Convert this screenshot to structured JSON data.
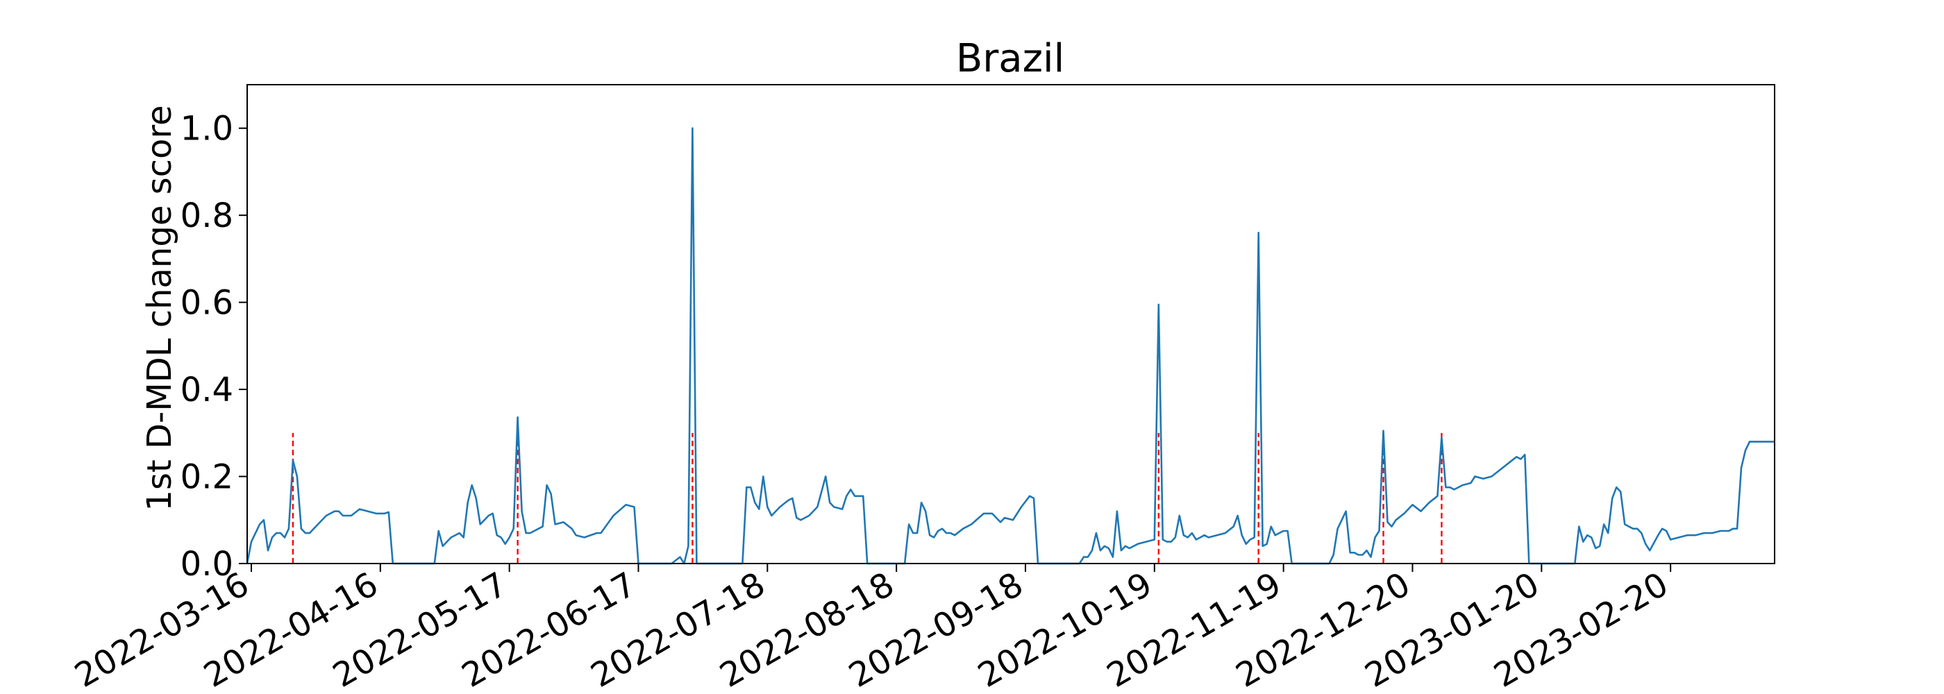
{
  "chart_data": {
    "type": "line",
    "title": "Brazil",
    "xlabel": "",
    "ylabel": "1st D-MDL change score",
    "ylim": [
      0.0,
      1.1
    ],
    "xlim": [
      "2022-03-15",
      "2023-03-17"
    ],
    "x_ticks": [
      "2022-03-16",
      "2022-04-16",
      "2022-05-17",
      "2022-06-17",
      "2022-07-18",
      "2022-08-18",
      "2022-09-18",
      "2022-10-19",
      "2022-11-19",
      "2022-12-20",
      "2023-01-20",
      "2023-02-20"
    ],
    "y_ticks": [
      "0.0",
      "0.2",
      "0.4",
      "0.6",
      "0.8",
      "1.0"
    ],
    "grid": false,
    "line_color": "#1f77b4",
    "change_point_color": "#ff0000",
    "series": [
      {
        "points": [
          [
            "2022-03-15",
            0.0
          ],
          [
            "2022-03-16",
            0.05
          ],
          [
            "2022-03-17",
            0.07
          ],
          [
            "2022-03-18",
            0.09
          ],
          [
            "2022-03-19",
            0.1
          ],
          [
            "2022-03-20",
            0.03
          ],
          [
            "2022-03-21",
            0.06
          ],
          [
            "2022-03-22",
            0.07
          ],
          [
            "2022-03-23",
            0.07
          ],
          [
            "2022-03-24",
            0.06
          ],
          [
            "2022-03-25",
            0.08
          ],
          [
            "2022-03-26",
            0.237
          ],
          [
            "2022-03-27",
            0.2
          ],
          [
            "2022-03-28",
            0.08
          ],
          [
            "2022-03-29",
            0.07
          ],
          [
            "2022-03-30",
            0.07
          ],
          [
            "2022-04-01",
            0.09
          ],
          [
            "2022-04-03",
            0.11
          ],
          [
            "2022-04-05",
            0.12
          ],
          [
            "2022-04-06",
            0.12
          ],
          [
            "2022-04-07",
            0.11
          ],
          [
            "2022-04-09",
            0.11
          ],
          [
            "2022-04-11",
            0.125
          ],
          [
            "2022-04-13",
            0.12
          ],
          [
            "2022-04-15",
            0.115
          ],
          [
            "2022-04-17",
            0.115
          ],
          [
            "2022-04-18",
            0.118
          ],
          [
            "2022-04-19",
            0.0
          ],
          [
            "2022-04-29",
            0.0
          ],
          [
            "2022-04-30",
            0.075
          ],
          [
            "2022-05-01",
            0.04
          ],
          [
            "2022-05-03",
            0.06
          ],
          [
            "2022-05-05",
            0.07
          ],
          [
            "2022-05-06",
            0.06
          ],
          [
            "2022-05-07",
            0.14
          ],
          [
            "2022-05-08",
            0.18
          ],
          [
            "2022-05-09",
            0.15
          ],
          [
            "2022-05-10",
            0.09
          ],
          [
            "2022-05-11",
            0.1
          ],
          [
            "2022-05-12",
            0.11
          ],
          [
            "2022-05-13",
            0.115
          ],
          [
            "2022-05-14",
            0.065
          ],
          [
            "2022-05-15",
            0.06
          ],
          [
            "2022-05-16",
            0.045
          ],
          [
            "2022-05-17",
            0.06
          ],
          [
            "2022-05-18",
            0.08
          ],
          [
            "2022-05-19",
            0.336
          ],
          [
            "2022-05-20",
            0.12
          ],
          [
            "2022-05-21",
            0.07
          ],
          [
            "2022-05-22",
            0.07
          ],
          [
            "2022-05-24",
            0.08
          ],
          [
            "2022-05-25",
            0.085
          ],
          [
            "2022-05-26",
            0.18
          ],
          [
            "2022-05-27",
            0.16
          ],
          [
            "2022-05-28",
            0.09
          ],
          [
            "2022-05-30",
            0.095
          ],
          [
            "2022-06-01",
            0.08
          ],
          [
            "2022-06-02",
            0.065
          ],
          [
            "2022-06-04",
            0.06
          ],
          [
            "2022-06-07",
            0.07
          ],
          [
            "2022-06-08",
            0.07
          ],
          [
            "2022-06-11",
            0.11
          ],
          [
            "2022-06-14",
            0.135
          ],
          [
            "2022-06-16",
            0.13
          ],
          [
            "2022-06-17",
            0.0
          ],
          [
            "2022-06-25",
            0.0
          ],
          [
            "2022-06-27",
            0.015
          ],
          [
            "2022-06-28",
            0.0
          ],
          [
            "2022-06-29",
            0.04
          ],
          [
            "2022-06-30",
            1.0
          ],
          [
            "2022-07-01",
            0.0
          ],
          [
            "2022-07-11",
            0.0
          ],
          [
            "2022-07-12",
            0.0
          ],
          [
            "2022-07-13",
            0.175
          ],
          [
            "2022-07-14",
            0.175
          ],
          [
            "2022-07-15",
            0.14
          ],
          [
            "2022-07-16",
            0.125
          ],
          [
            "2022-07-17",
            0.2
          ],
          [
            "2022-07-18",
            0.13
          ],
          [
            "2022-07-19",
            0.11
          ],
          [
            "2022-07-21",
            0.13
          ],
          [
            "2022-07-23",
            0.145
          ],
          [
            "2022-07-24",
            0.15
          ],
          [
            "2022-07-25",
            0.105
          ],
          [
            "2022-07-26",
            0.1
          ],
          [
            "2022-07-28",
            0.11
          ],
          [
            "2022-07-30",
            0.13
          ],
          [
            "2022-08-01",
            0.2
          ],
          [
            "2022-08-02",
            0.14
          ],
          [
            "2022-08-03",
            0.13
          ],
          [
            "2022-08-05",
            0.125
          ],
          [
            "2022-08-06",
            0.155
          ],
          [
            "2022-08-07",
            0.17
          ],
          [
            "2022-08-08",
            0.155
          ],
          [
            "2022-08-10",
            0.155
          ],
          [
            "2022-08-11",
            0.0
          ],
          [
            "2022-08-19",
            0.0
          ],
          [
            "2022-08-20",
            0.0
          ],
          [
            "2022-08-21",
            0.09
          ],
          [
            "2022-08-22",
            0.07
          ],
          [
            "2022-08-23",
            0.07
          ],
          [
            "2022-08-24",
            0.14
          ],
          [
            "2022-08-25",
            0.12
          ],
          [
            "2022-08-26",
            0.065
          ],
          [
            "2022-08-27",
            0.06
          ],
          [
            "2022-08-28",
            0.075
          ],
          [
            "2022-08-29",
            0.08
          ],
          [
            "2022-08-30",
            0.07
          ],
          [
            "2022-08-31",
            0.07
          ],
          [
            "2022-09-01",
            0.065
          ],
          [
            "2022-09-03",
            0.08
          ],
          [
            "2022-09-05",
            0.09
          ],
          [
            "2022-09-08",
            0.115
          ],
          [
            "2022-09-10",
            0.115
          ],
          [
            "2022-09-12",
            0.095
          ],
          [
            "2022-09-13",
            0.105
          ],
          [
            "2022-09-15",
            0.1
          ],
          [
            "2022-09-17",
            0.13
          ],
          [
            "2022-09-19",
            0.155
          ],
          [
            "2022-09-20",
            0.15
          ],
          [
            "2022-09-21",
            0.0
          ],
          [
            "2022-09-30",
            0.0
          ],
          [
            "2022-10-01",
            0.0
          ],
          [
            "2022-10-02",
            0.015
          ],
          [
            "2022-10-03",
            0.015
          ],
          [
            "2022-10-04",
            0.03
          ],
          [
            "2022-10-05",
            0.07
          ],
          [
            "2022-10-06",
            0.03
          ],
          [
            "2022-10-07",
            0.04
          ],
          [
            "2022-10-08",
            0.035
          ],
          [
            "2022-10-09",
            0.015
          ],
          [
            "2022-10-10",
            0.12
          ],
          [
            "2022-10-11",
            0.03
          ],
          [
            "2022-10-12",
            0.04
          ],
          [
            "2022-10-13",
            0.035
          ],
          [
            "2022-10-15",
            0.045
          ],
          [
            "2022-10-17",
            0.05
          ],
          [
            "2022-10-19",
            0.055
          ],
          [
            "2022-10-20",
            0.595
          ],
          [
            "2022-10-21",
            0.055
          ],
          [
            "2022-10-22",
            0.05
          ],
          [
            "2022-10-23",
            0.05
          ],
          [
            "2022-10-24",
            0.06
          ],
          [
            "2022-10-25",
            0.11
          ],
          [
            "2022-10-26",
            0.065
          ],
          [
            "2022-10-27",
            0.06
          ],
          [
            "2022-10-28",
            0.07
          ],
          [
            "2022-10-29",
            0.055
          ],
          [
            "2022-10-30",
            0.06
          ],
          [
            "2022-10-31",
            0.065
          ],
          [
            "2022-11-01",
            0.06
          ],
          [
            "2022-11-03",
            0.065
          ],
          [
            "2022-11-05",
            0.07
          ],
          [
            "2022-11-07",
            0.085
          ],
          [
            "2022-11-08",
            0.11
          ],
          [
            "2022-11-09",
            0.065
          ],
          [
            "2022-11-10",
            0.045
          ],
          [
            "2022-11-11",
            0.055
          ],
          [
            "2022-11-12",
            0.06
          ],
          [
            "2022-11-13",
            0.76
          ],
          [
            "2022-11-14",
            0.04
          ],
          [
            "2022-11-15",
            0.045
          ],
          [
            "2022-11-16",
            0.085
          ],
          [
            "2022-11-17",
            0.065
          ],
          [
            "2022-11-18",
            0.07
          ],
          [
            "2022-11-19",
            0.075
          ],
          [
            "2022-11-20",
            0.075
          ],
          [
            "2022-11-21",
            0.0
          ],
          [
            "2022-11-30",
            0.0
          ],
          [
            "2022-12-01",
            0.02
          ],
          [
            "2022-12-02",
            0.08
          ],
          [
            "2022-12-04",
            0.12
          ],
          [
            "2022-12-05",
            0.025
          ],
          [
            "2022-12-06",
            0.025
          ],
          [
            "2022-12-07",
            0.02
          ],
          [
            "2022-12-08",
            0.02
          ],
          [
            "2022-12-09",
            0.03
          ],
          [
            "2022-12-10",
            0.015
          ],
          [
            "2022-12-11",
            0.06
          ],
          [
            "2022-12-12",
            0.075
          ],
          [
            "2022-12-13",
            0.305
          ],
          [
            "2022-12-14",
            0.095
          ],
          [
            "2022-12-15",
            0.085
          ],
          [
            "2022-12-16",
            0.1
          ],
          [
            "2022-12-18",
            0.115
          ],
          [
            "2022-12-20",
            0.135
          ],
          [
            "2022-12-22",
            0.12
          ],
          [
            "2022-12-24",
            0.14
          ],
          [
            "2022-12-26",
            0.155
          ],
          [
            "2022-12-27",
            0.29
          ],
          [
            "2022-12-28",
            0.175
          ],
          [
            "2022-12-29",
            0.175
          ],
          [
            "2022-12-30",
            0.17
          ],
          [
            "2023-01-01",
            0.18
          ],
          [
            "2023-01-03",
            0.185
          ],
          [
            "2023-01-04",
            0.2
          ],
          [
            "2023-01-06",
            0.195
          ],
          [
            "2023-01-08",
            0.2
          ],
          [
            "2023-01-10",
            0.215
          ],
          [
            "2023-01-12",
            0.23
          ],
          [
            "2023-01-14",
            0.245
          ],
          [
            "2023-01-15",
            0.24
          ],
          [
            "2023-01-16",
            0.25
          ],
          [
            "2023-01-17",
            0.0
          ],
          [
            "2023-01-27",
            0.0
          ],
          [
            "2023-01-28",
            0.0
          ],
          [
            "2023-01-29",
            0.085
          ],
          [
            "2023-01-30",
            0.05
          ],
          [
            "2023-01-31",
            0.065
          ],
          [
            "2023-02-01",
            0.06
          ],
          [
            "2023-02-02",
            0.035
          ],
          [
            "2023-02-03",
            0.04
          ],
          [
            "2023-02-04",
            0.09
          ],
          [
            "2023-02-05",
            0.07
          ],
          [
            "2023-02-06",
            0.15
          ],
          [
            "2023-02-07",
            0.175
          ],
          [
            "2023-02-08",
            0.165
          ],
          [
            "2023-02-09",
            0.09
          ],
          [
            "2023-02-10",
            0.085
          ],
          [
            "2023-02-11",
            0.08
          ],
          [
            "2023-02-12",
            0.08
          ],
          [
            "2023-02-13",
            0.07
          ],
          [
            "2023-02-14",
            0.045
          ],
          [
            "2023-02-15",
            0.03
          ],
          [
            "2023-02-17",
            0.065
          ],
          [
            "2023-02-18",
            0.08
          ],
          [
            "2023-02-19",
            0.075
          ],
          [
            "2023-02-20",
            0.055
          ],
          [
            "2023-02-22",
            0.06
          ],
          [
            "2023-02-24",
            0.065
          ],
          [
            "2023-02-26",
            0.065
          ],
          [
            "2023-02-28",
            0.07
          ],
          [
            "2023-03-02",
            0.07
          ],
          [
            "2023-03-04",
            0.075
          ],
          [
            "2023-03-06",
            0.075
          ],
          [
            "2023-03-07",
            0.08
          ],
          [
            "2023-03-08",
            0.08
          ],
          [
            "2023-03-09",
            0.22
          ],
          [
            "2023-03-10",
            0.26
          ],
          [
            "2023-03-11",
            0.28
          ],
          [
            "2023-03-17",
            0.28
          ]
        ]
      }
    ],
    "change_points": [
      "2022-03-26",
      "2022-05-19",
      "2022-06-30",
      "2022-10-20",
      "2022-11-13",
      "2022-12-13",
      "2022-12-27"
    ]
  }
}
